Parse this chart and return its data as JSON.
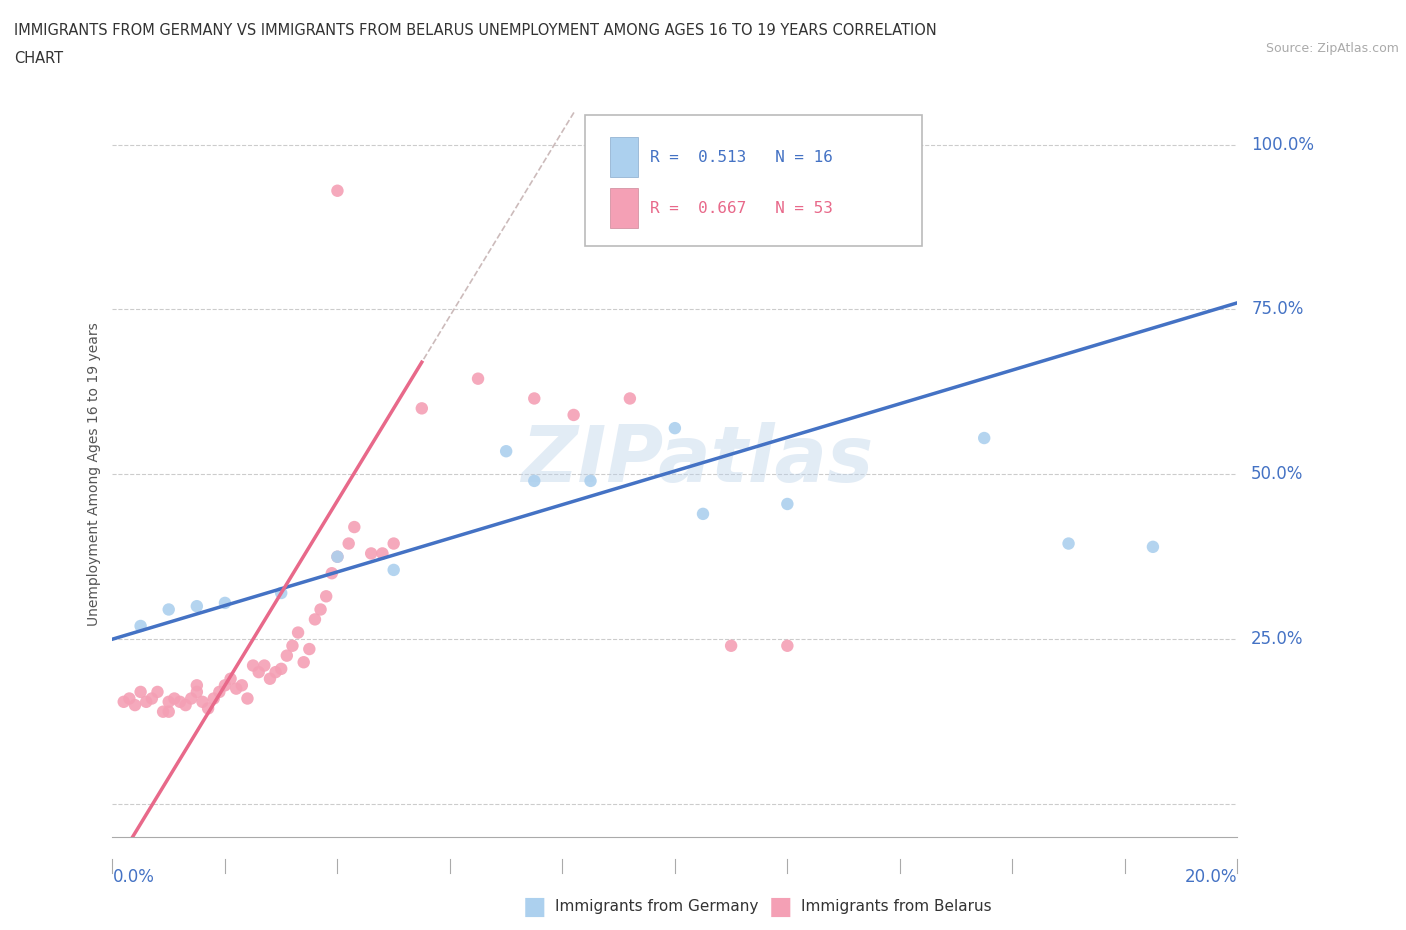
{
  "title_line1": "IMMIGRANTS FROM GERMANY VS IMMIGRANTS FROM BELARUS UNEMPLOYMENT AMONG AGES 16 TO 19 YEARS CORRELATION",
  "title_line2": "CHART",
  "source": "Source: ZipAtlas.com",
  "ylabel": "Unemployment Among Ages 16 to 19 years",
  "xlim": [
    0.0,
    0.2
  ],
  "ylim": [
    -0.05,
    1.05
  ],
  "yticks": [
    0.0,
    0.25,
    0.5,
    0.75,
    1.0
  ],
  "color_germany": "#ACD0EE",
  "color_belarus": "#F4A0B5",
  "trendline_germany": "#4472C4",
  "trendline_belarus": "#E8698A",
  "trendline_dashed": "#D0A0A8",
  "legend_r_germany": "R = 0.513",
  "legend_n_germany": "N = 16",
  "legend_r_belarus": "R = 0.667",
  "legend_n_belarus": "N = 53",
  "watermark": "ZIPatlas",
  "background_color": "#FFFFFF",
  "grid_color": "#CCCCCC",
  "germany_x": [
    0.005,
    0.01,
    0.015,
    0.02,
    0.03,
    0.04,
    0.05,
    0.07,
    0.075,
    0.085,
    0.1,
    0.105,
    0.12,
    0.155,
    0.17,
    0.185
  ],
  "germany_y": [
    0.27,
    0.295,
    0.3,
    0.305,
    0.32,
    0.375,
    0.355,
    0.535,
    0.49,
    0.49,
    0.57,
    0.44,
    0.455,
    0.555,
    0.395,
    0.39
  ],
  "belarus_x": [
    0.002,
    0.003,
    0.004,
    0.005,
    0.006,
    0.007,
    0.008,
    0.009,
    0.01,
    0.01,
    0.011,
    0.012,
    0.013,
    0.014,
    0.015,
    0.015,
    0.016,
    0.017,
    0.018,
    0.019,
    0.02,
    0.021,
    0.022,
    0.023,
    0.024,
    0.025,
    0.026,
    0.027,
    0.028,
    0.029,
    0.03,
    0.031,
    0.032,
    0.033,
    0.034,
    0.035,
    0.036,
    0.037,
    0.038,
    0.039,
    0.04,
    0.042,
    0.043,
    0.046,
    0.048,
    0.05,
    0.055,
    0.065,
    0.075,
    0.082,
    0.092,
    0.11,
    0.12
  ],
  "belarus_y": [
    0.155,
    0.16,
    0.15,
    0.17,
    0.155,
    0.16,
    0.17,
    0.14,
    0.155,
    0.14,
    0.16,
    0.155,
    0.15,
    0.16,
    0.18,
    0.17,
    0.155,
    0.145,
    0.16,
    0.17,
    0.18,
    0.19,
    0.175,
    0.18,
    0.16,
    0.21,
    0.2,
    0.21,
    0.19,
    0.2,
    0.205,
    0.225,
    0.24,
    0.26,
    0.215,
    0.235,
    0.28,
    0.295,
    0.315,
    0.35,
    0.375,
    0.395,
    0.42,
    0.38,
    0.38,
    0.395,
    0.6,
    0.645,
    0.615,
    0.59,
    0.615,
    0.24,
    0.24
  ],
  "belarus_outlier_x": [
    0.04
  ],
  "belarus_outlier_y": [
    0.93
  ]
}
